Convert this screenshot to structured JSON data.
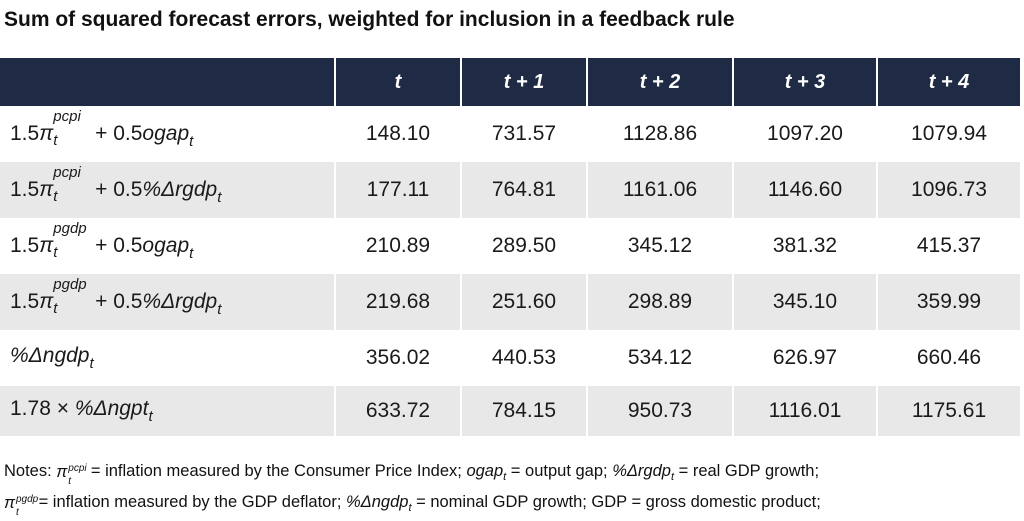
{
  "title": "Sum of squared forecast errors, weighted for inclusion in a feedback rule",
  "columns": [
    "",
    "t",
    "t + 1",
    "t + 2",
    "t + 3",
    "t + 4"
  ],
  "rows": [
    {
      "label": {
        "coef": "1.5",
        "sym": "π",
        "sup": "pcpi",
        "sub": "t",
        "rest": " + 0.5",
        "var": "ogap",
        "var_sub": "t"
      },
      "values": [
        "148.10",
        "731.57",
        "1128.86",
        "1097.20",
        "1079.94"
      ]
    },
    {
      "label": {
        "coef": "1.5",
        "sym": "π",
        "sup": "pcpi",
        "sub": "t",
        "rest": " + 0.5",
        "var": "%Δrgdp",
        "var_sub": "t"
      },
      "values": [
        "177.11",
        "764.81",
        "1161.06",
        "1146.60",
        "1096.73"
      ]
    },
    {
      "label": {
        "coef": "1.5",
        "sym": "π",
        "sup": "pgdp",
        "sub": "t",
        "rest": " + 0.5",
        "var": "ogap",
        "var_sub": "t"
      },
      "values": [
        "210.89",
        "289.50",
        "345.12",
        "381.32",
        "415.37"
      ]
    },
    {
      "label": {
        "coef": "1.5",
        "sym": "π",
        "sup": "pgdp",
        "sub": "t",
        "rest": " + 0.5",
        "var": "%Δrgdp",
        "var_sub": "t"
      },
      "values": [
        "219.68",
        "251.60",
        "298.89",
        "345.10",
        "359.99"
      ]
    },
    {
      "label": {
        "var": "%Δngdp",
        "var_sub": "t"
      },
      "values": [
        "356.02",
        "440.53",
        "534.12",
        "626.97",
        "660.46"
      ]
    },
    {
      "label": {
        "prefix": "1.78 × ",
        "var": "%Δngpt",
        "var_sub": "t"
      },
      "values": [
        "633.72",
        "784.15",
        "950.73",
        "1116.01",
        "1175.61"
      ]
    }
  ],
  "notes": {
    "line1": {
      "lead": "Notes: ",
      "sym": "π",
      "sup": "pcpi",
      "sub": "t",
      "d1": " = inflation measured by the Consumer Price Index; ",
      "v1": "ogap",
      "v1_sub": "t",
      "d2": " = output gap; ",
      "v2": "%Δrgdp",
      "v2_sub": "t",
      "d3": " = real GDP growth;"
    },
    "line2": {
      "sym": "π",
      "sup": "pgdp",
      "sub": "t",
      "d1": " = inflation measured by the GDP deflator; ",
      "v1": "%Δngdp",
      "v1_sub": "t",
      "d2": " = nominal GDP growth; GDP = gross domestic product;"
    }
  },
  "colors": {
    "header_bg": "#1f2a44",
    "shade_bg": "#e8e8e8"
  }
}
